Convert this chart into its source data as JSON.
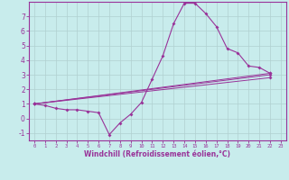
{
  "xlabel": "Windchill (Refroidissement éolien,°C)",
  "background_color": "#c8ecec",
  "line_color": "#993399",
  "grid_color": "#b0d0d0",
  "xlim": [
    -0.5,
    23.5
  ],
  "ylim": [
    -1.5,
    8.0
  ],
  "xticks": [
    0,
    1,
    2,
    3,
    4,
    5,
    6,
    7,
    8,
    9,
    10,
    11,
    12,
    13,
    14,
    15,
    16,
    17,
    18,
    19,
    20,
    21,
    22,
    23
  ],
  "yticks": [
    -1,
    0,
    1,
    2,
    3,
    4,
    5,
    6,
    7
  ],
  "lines": [
    {
      "x": [
        0,
        1,
        2,
        3,
        4,
        5,
        6,
        7,
        8,
        9,
        10,
        11,
        12,
        13,
        14,
        15,
        16,
        17,
        18,
        19,
        20,
        21,
        22
      ],
      "y": [
        1.0,
        0.9,
        0.7,
        0.6,
        0.6,
        0.5,
        0.4,
        -1.1,
        -0.3,
        0.3,
        1.1,
        2.7,
        4.3,
        6.5,
        7.9,
        7.9,
        7.2,
        6.3,
        4.8,
        4.5,
        3.6,
        3.5,
        3.1
      ]
    },
    {
      "x": [
        0,
        22
      ],
      "y": [
        1.0,
        3.1
      ]
    },
    {
      "x": [
        0,
        22
      ],
      "y": [
        1.0,
        3.0
      ]
    },
    {
      "x": [
        0,
        22
      ],
      "y": [
        1.0,
        2.8
      ]
    }
  ]
}
